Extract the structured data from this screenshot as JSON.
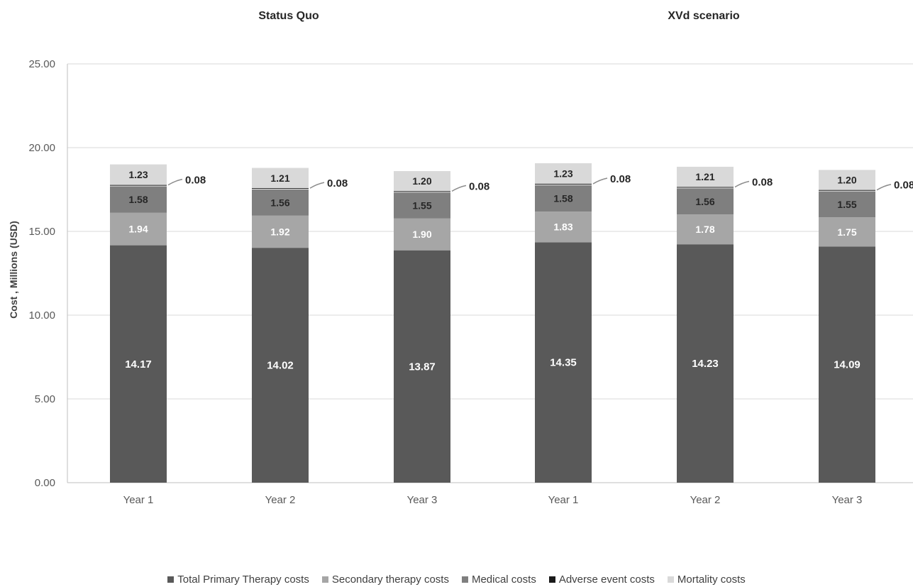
{
  "chart_data": {
    "type": "bar",
    "stacked": true,
    "group_titles": [
      "Status Quo",
      "XVd  scenario"
    ],
    "categories": [
      "Year 1",
      "Year 2",
      "Year 3",
      "Year 1",
      "Year 2",
      "Year 3"
    ],
    "ylabel": "Cost , Millions (USD)",
    "ylim": [
      0,
      25
    ],
    "yticks": [
      "0.00",
      "5.00",
      "10.00",
      "15.00",
      "20.00",
      "25.00"
    ],
    "grid": true,
    "legend_position": "bottom",
    "series": [
      {
        "name": "Total Primary Therapy costs",
        "color": "#595959",
        "values": [
          14.17,
          14.02,
          13.87,
          14.35,
          14.23,
          14.09
        ],
        "labels": [
          "14.17",
          "14.02",
          "13.87",
          "14.35",
          "14.23",
          "14.09"
        ]
      },
      {
        "name": "Secondary therapy costs",
        "color": "#a6a6a6",
        "values": [
          1.94,
          1.92,
          1.9,
          1.83,
          1.78,
          1.75
        ],
        "labels": [
          "1.94",
          "1.92",
          "1.90",
          "1.83",
          "1.78",
          "1.75"
        ]
      },
      {
        "name": "Medical costs",
        "color": "#7f7f7f",
        "values": [
          1.58,
          1.56,
          1.55,
          1.58,
          1.56,
          1.55
        ],
        "labels": [
          "1.58",
          "1.56",
          "1.55",
          "1.58",
          "1.56",
          "1.55"
        ]
      },
      {
        "name": "Adverse event costs",
        "color": "#1a1a1a",
        "values": [
          0.08,
          0.08,
          0.08,
          0.08,
          0.08,
          0.08
        ],
        "labels": [
          "0.08",
          "0.08",
          "0.08",
          "0.08",
          "0.08",
          "0.08"
        ]
      },
      {
        "name": "Mortality costs",
        "color": "#d9d9d9",
        "values": [
          1.23,
          1.21,
          1.2,
          1.23,
          1.21,
          1.2
        ],
        "labels": [
          "1.23",
          "1.21",
          "1.20",
          "1.23",
          "1.21",
          "1.20"
        ]
      }
    ]
  }
}
